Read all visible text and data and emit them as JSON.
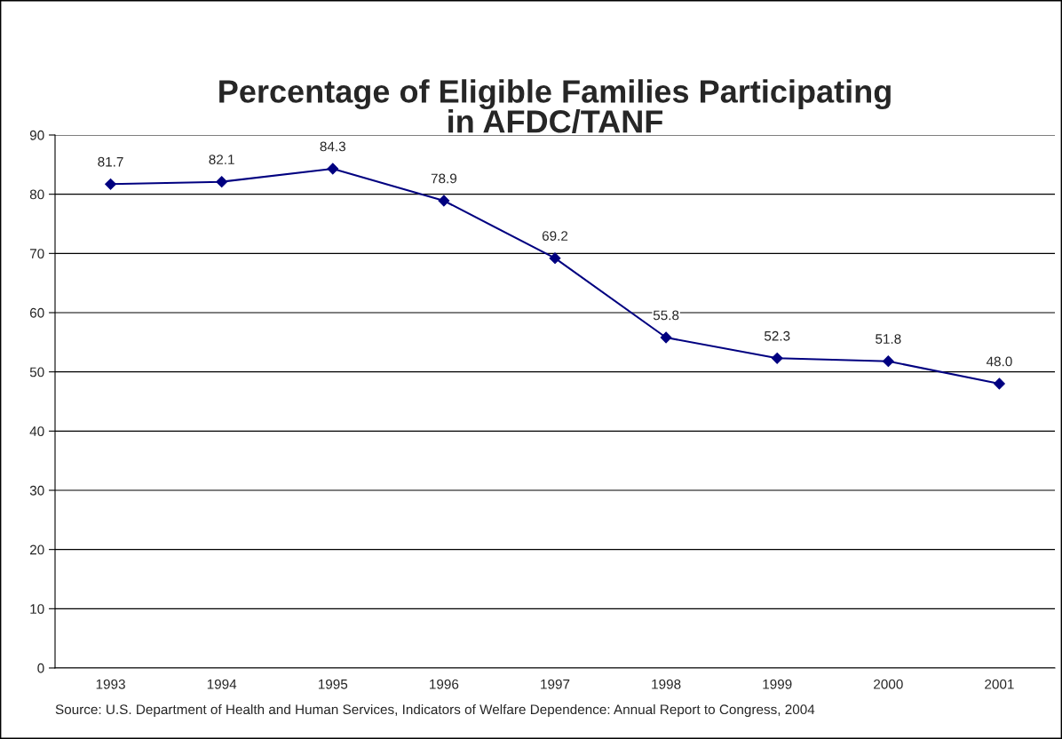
{
  "chart_data": {
    "type": "line",
    "title": "Percentage of Eligible Families Participating\nin AFDC/TANF",
    "categories": [
      "1993",
      "1994",
      "1995",
      "1996",
      "1997",
      "1998",
      "1999",
      "2000",
      "2001"
    ],
    "series": [
      {
        "color": "#000080",
        "values": [
          81.7,
          82.1,
          84.3,
          78.9,
          69.2,
          55.8,
          52.3,
          51.8,
          48.0
        ],
        "value_labels": [
          "81.7",
          "82.1",
          "84.3",
          "78.9",
          "69.2",
          "55.8",
          "52.3",
          "51.8",
          "48.0"
        ]
      }
    ],
    "ylim": [
      0,
      90
    ],
    "yticks": [
      0,
      10,
      20,
      30,
      40,
      50,
      60,
      70,
      80,
      90
    ],
    "grid": "y",
    "marker": "diamond",
    "line_style": "solid",
    "annotations": [
      "Source: U.S. Department of Health and Human Services, Indicators of Welfare Dependence: Annual Report to Congress, 2004"
    ]
  }
}
